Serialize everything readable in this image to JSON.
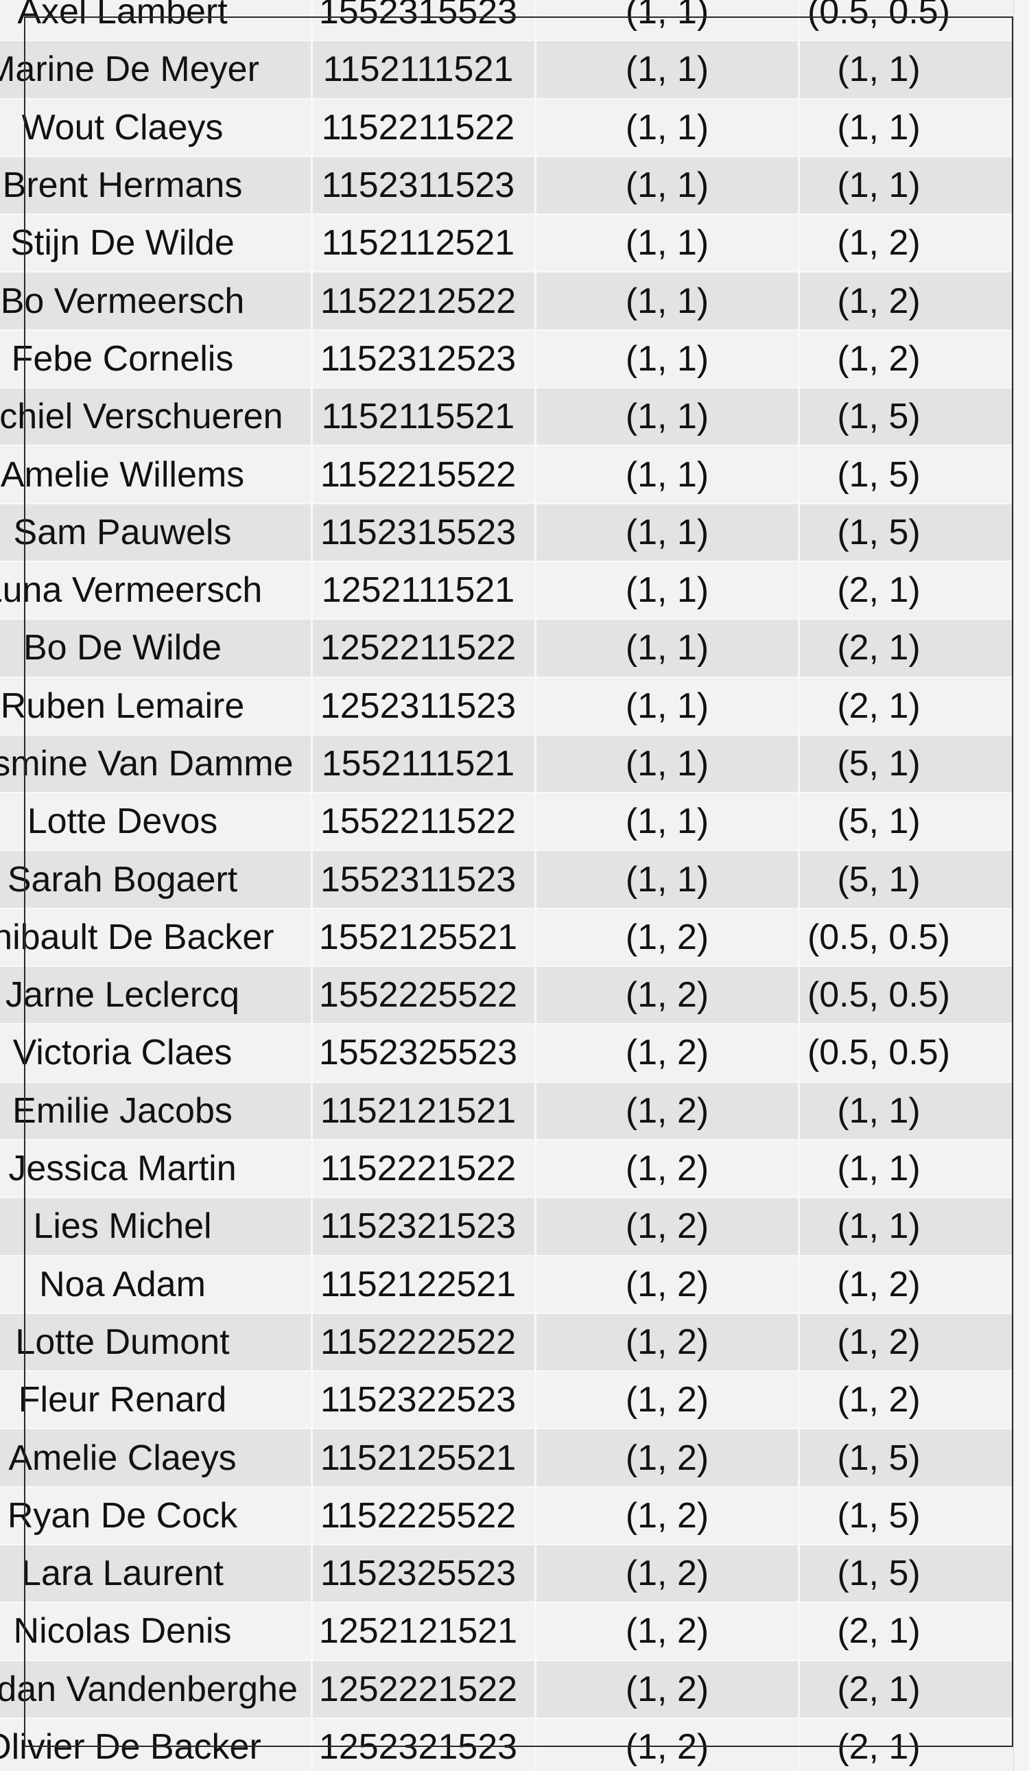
{
  "table": {
    "rows": [
      {
        "name": "Axel Lambert",
        "id": "1552315523",
        "a": "(1, 1)",
        "b": "(0.5, 0.5)"
      },
      {
        "name": "Marine De Meyer",
        "id": "1152111521",
        "a": "(1, 1)",
        "b": "(1, 1)"
      },
      {
        "name": "Wout Claeys",
        "id": "1152211522",
        "a": "(1, 1)",
        "b": "(1, 1)"
      },
      {
        "name": "Brent Hermans",
        "id": "1152311523",
        "a": "(1, 1)",
        "b": "(1, 1)"
      },
      {
        "name": "Stijn De Wilde",
        "id": "1152112521",
        "a": "(1, 1)",
        "b": "(1, 2)"
      },
      {
        "name": "Bo Vermeersch",
        "id": "1152212522",
        "a": "(1, 1)",
        "b": "(1, 2)"
      },
      {
        "name": "Febe Cornelis",
        "id": "1152312523",
        "a": "(1, 1)",
        "b": "(1, 2)"
      },
      {
        "name": "Michiel Verschueren",
        "id": "1152115521",
        "a": "(1, 1)",
        "b": "(1, 5)"
      },
      {
        "name": "Amelie Willems",
        "id": "1152215522",
        "a": "(1, 1)",
        "b": "(1, 5)"
      },
      {
        "name": "Sam Pauwels",
        "id": "1152315523",
        "a": "(1, 1)",
        "b": "(1, 5)"
      },
      {
        "name": "Luna Vermeersch",
        "id": "1252111521",
        "a": "(1, 1)",
        "b": "(2, 1)"
      },
      {
        "name": "Bo De Wilde",
        "id": "1252211522",
        "a": "(1, 1)",
        "b": "(2, 1)"
      },
      {
        "name": "Ruben Lemaire",
        "id": "1252311523",
        "a": "(1, 1)",
        "b": "(2, 1)"
      },
      {
        "name": "Yasmine Van Damme",
        "id": "1552111521",
        "a": "(1, 1)",
        "b": "(5, 1)"
      },
      {
        "name": "Lotte Devos",
        "id": "1552211522",
        "a": "(1, 1)",
        "b": "(5, 1)"
      },
      {
        "name": "Sarah Bogaert",
        "id": "1552311523",
        "a": "(1, 1)",
        "b": "(5, 1)"
      },
      {
        "name": "Thibault De Backer",
        "id": "1552125521",
        "a": "(1, 2)",
        "b": "(0.5, 0.5)"
      },
      {
        "name": "Jarne Leclercq",
        "id": "1552225522",
        "a": "(1, 2)",
        "b": "(0.5, 0.5)"
      },
      {
        "name": "Victoria Claes",
        "id": "1552325523",
        "a": "(1, 2)",
        "b": "(0.5, 0.5)"
      },
      {
        "name": "Emilie Jacobs",
        "id": "1152121521",
        "a": "(1, 2)",
        "b": "(1, 1)"
      },
      {
        "name": "Jessica Martin",
        "id": "1152221522",
        "a": "(1, 2)",
        "b": "(1, 1)"
      },
      {
        "name": "Lies Michel",
        "id": "1152321523",
        "a": "(1, 2)",
        "b": "(1, 1)"
      },
      {
        "name": "Noa Adam",
        "id": "1152122521",
        "a": "(1, 2)",
        "b": "(1, 2)"
      },
      {
        "name": "Lotte Dumont",
        "id": "1152222522",
        "a": "(1, 2)",
        "b": "(1, 2)"
      },
      {
        "name": "Fleur Renard",
        "id": "1152322523",
        "a": "(1, 2)",
        "b": "(1, 2)"
      },
      {
        "name": "Amelie Claeys",
        "id": "1152125521",
        "a": "(1, 2)",
        "b": "(1, 5)"
      },
      {
        "name": "Ryan De Cock",
        "id": "1152225522",
        "a": "(1, 2)",
        "b": "(1, 5)"
      },
      {
        "name": "Lara Laurent",
        "id": "1152325523",
        "a": "(1, 2)",
        "b": "(1, 5)"
      },
      {
        "name": "Nicolas Denis",
        "id": "1252121521",
        "a": "(1, 2)",
        "b": "(2, 1)"
      },
      {
        "name": "Jordan Vandenberghe",
        "id": "1252221522",
        "a": "(1, 2)",
        "b": "(2, 1)"
      },
      {
        "name": "Olivier De Backer",
        "id": "1252321523",
        "a": "(1, 2)",
        "b": "(2, 1)"
      }
    ]
  },
  "colors": {
    "row_light": "#f2f2f2",
    "row_dark": "#e3e3e3",
    "text": "#111111",
    "frame": "#2a2a2a"
  }
}
